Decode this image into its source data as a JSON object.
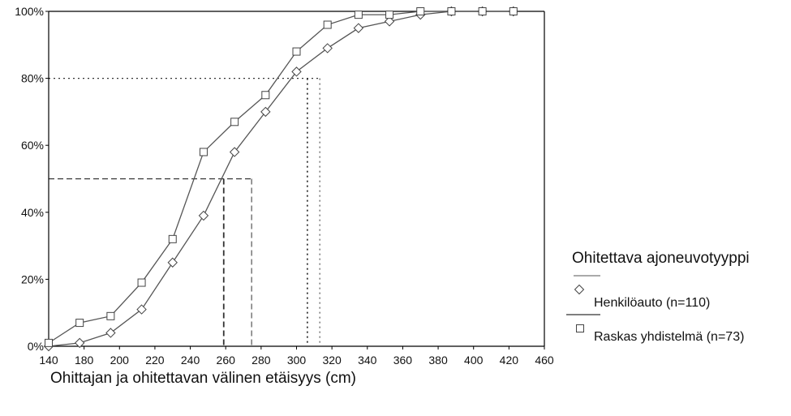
{
  "chart_data": {
    "type": "line",
    "title": "",
    "xlabel": "Ohittajan ja ohitettavan välinen etäisyys (cm)",
    "ylabel": "",
    "xlim": [
      140,
      460
    ],
    "ylim": [
      0,
      100
    ],
    "x_ticks": [
      "140",
      "180",
      "200",
      "220",
      "240",
      "260",
      "280",
      "300",
      "320",
      "340",
      "360",
      "380",
      "400",
      "420",
      "460"
    ],
    "y_ticks": [
      "0%",
      "20%",
      "40%",
      "60%",
      "80%",
      "100%"
    ],
    "grid": false,
    "legend": {
      "title": "Ohitettava ajoneuvotyyppi",
      "placement": "right"
    },
    "series": [
      {
        "name": "Henkilöauto (n=110)",
        "marker": "diamond",
        "x": [
          140,
          160,
          180,
          200,
          220,
          240,
          260,
          280,
          300,
          320,
          340,
          360,
          380,
          400,
          420,
          440
        ],
        "values": [
          0,
          1,
          4,
          11,
          25,
          39,
          58,
          70,
          82,
          89,
          95,
          97,
          99,
          100,
          100,
          100
        ]
      },
      {
        "name": "Raskas yhdistelmä (n=73)",
        "marker": "square",
        "x": [
          140,
          160,
          180,
          200,
          220,
          240,
          260,
          280,
          300,
          320,
          340,
          360,
          380,
          400,
          420,
          440
        ],
        "values": [
          1,
          7,
          9,
          19,
          32,
          58,
          67,
          75,
          88,
          96,
          99,
          99,
          100,
          100,
          100,
          100
        ]
      }
    ],
    "reference_lines": [
      {
        "level": 50,
        "x_values": [
          253,
          271
        ],
        "style": "dashed"
      },
      {
        "level": 80,
        "x_values": [
          307,
          315
        ],
        "style": "dotted"
      }
    ],
    "colors": {
      "series_line": "#555555",
      "axis": "#000000",
      "reference": "#333333"
    }
  }
}
